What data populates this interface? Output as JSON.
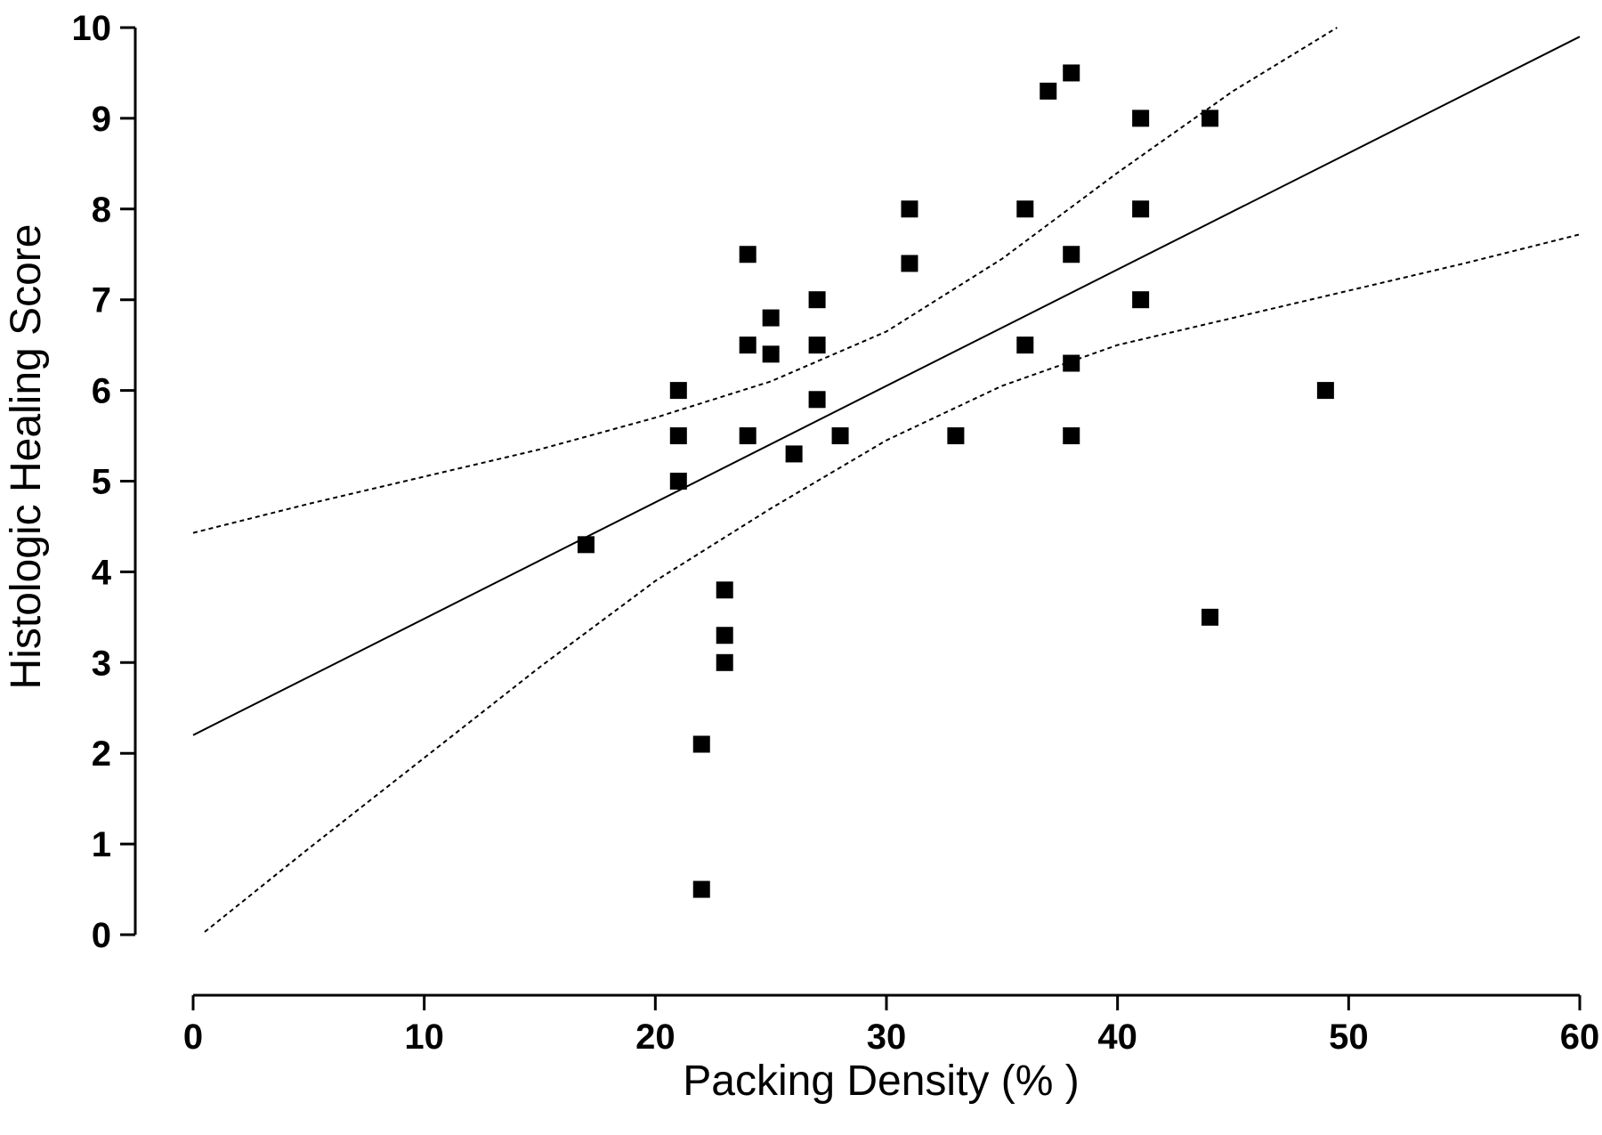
{
  "chart_data": {
    "type": "scatter",
    "xlabel": "Packing Density (% )",
    "ylabel": "Histologic Healing Score",
    "xlim": [
      0,
      60
    ],
    "ylim": [
      0,
      10
    ],
    "x_ticks": [
      0,
      10,
      20,
      30,
      40,
      50,
      60
    ],
    "y_ticks": [
      0,
      1,
      2,
      3,
      4,
      5,
      6,
      7,
      8,
      9,
      10
    ],
    "grid": false,
    "marker": "square",
    "points": [
      {
        "x": 17,
        "y": 4.3
      },
      {
        "x": 21,
        "y": 6.0
      },
      {
        "x": 21,
        "y": 5.5
      },
      {
        "x": 21,
        "y": 5.0
      },
      {
        "x": 22,
        "y": 2.1
      },
      {
        "x": 22,
        "y": 0.5
      },
      {
        "x": 23,
        "y": 3.8
      },
      {
        "x": 23,
        "y": 3.3
      },
      {
        "x": 23,
        "y": 3.0
      },
      {
        "x": 24,
        "y": 7.5
      },
      {
        "x": 24,
        "y": 6.5
      },
      {
        "x": 24,
        "y": 5.5
      },
      {
        "x": 25,
        "y": 6.8
      },
      {
        "x": 25,
        "y": 6.4
      },
      {
        "x": 26,
        "y": 5.3
      },
      {
        "x": 27,
        "y": 7.0
      },
      {
        "x": 27,
        "y": 6.5
      },
      {
        "x": 27,
        "y": 5.9
      },
      {
        "x": 28,
        "y": 5.5
      },
      {
        "x": 31,
        "y": 8.0
      },
      {
        "x": 31,
        "y": 7.4
      },
      {
        "x": 33,
        "y": 5.5
      },
      {
        "x": 36,
        "y": 8.0
      },
      {
        "x": 36,
        "y": 6.5
      },
      {
        "x": 37,
        "y": 9.3
      },
      {
        "x": 38,
        "y": 9.5
      },
      {
        "x": 38,
        "y": 7.5
      },
      {
        "x": 38,
        "y": 6.3
      },
      {
        "x": 38,
        "y": 5.5
      },
      {
        "x": 41,
        "y": 9.0
      },
      {
        "x": 41,
        "y": 8.0
      },
      {
        "x": 41,
        "y": 7.0
      },
      {
        "x": 44,
        "y": 9.0
      },
      {
        "x": 44,
        "y": 3.5
      },
      {
        "x": 49,
        "y": 6.0
      }
    ],
    "regression_line": [
      {
        "x": 0,
        "y": 2.2
      },
      {
        "x": 60,
        "y": 9.9
      }
    ],
    "ci_upper": [
      {
        "x": 0,
        "y": 4.43
      },
      {
        "x": 5,
        "y": 4.75
      },
      {
        "x": 10,
        "y": 5.05
      },
      {
        "x": 15,
        "y": 5.35
      },
      {
        "x": 20,
        "y": 5.7
      },
      {
        "x": 25,
        "y": 6.1
      },
      {
        "x": 30,
        "y": 6.65
      },
      {
        "x": 35,
        "y": 7.45
      },
      {
        "x": 40,
        "y": 8.4
      },
      {
        "x": 45,
        "y": 9.3
      },
      {
        "x": 49.5,
        "y": 10.0
      }
    ],
    "ci_lower": [
      {
        "x": 0.5,
        "y": 0.03
      },
      {
        "x": 5,
        "y": 0.95
      },
      {
        "x": 10,
        "y": 1.95
      },
      {
        "x": 15,
        "y": 2.95
      },
      {
        "x": 20,
        "y": 3.9
      },
      {
        "x": 25,
        "y": 4.7
      },
      {
        "x": 30,
        "y": 5.45
      },
      {
        "x": 35,
        "y": 6.05
      },
      {
        "x": 40,
        "y": 6.5
      },
      {
        "x": 45,
        "y": 6.8
      },
      {
        "x": 50,
        "y": 7.1
      },
      {
        "x": 55,
        "y": 7.4
      },
      {
        "x": 60,
        "y": 7.72
      }
    ]
  }
}
